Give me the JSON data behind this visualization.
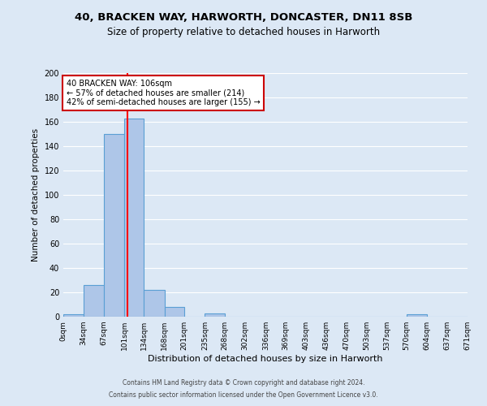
{
  "title_line1": "40, BRACKEN WAY, HARWORTH, DONCASTER, DN11 8SB",
  "title_line2": "Size of property relative to detached houses in Harworth",
  "bin_edges": [
    0,
    34,
    67,
    101,
    134,
    168,
    201,
    235,
    268,
    302,
    336,
    369,
    403,
    436,
    470,
    503,
    537,
    570,
    604,
    637,
    671
  ],
  "bar_heights": [
    2,
    26,
    150,
    163,
    22,
    8,
    0,
    3,
    0,
    0,
    0,
    0,
    0,
    0,
    0,
    0,
    0,
    2,
    0,
    0
  ],
  "bar_color": "#aec6e8",
  "bar_edge_color": "#5a9fd4",
  "red_line_x": 106,
  "ylabel": "Number of detached properties",
  "xlabel": "Distribution of detached houses by size in Harworth",
  "ylim": [
    0,
    200
  ],
  "yticks": [
    0,
    20,
    40,
    60,
    80,
    100,
    120,
    140,
    160,
    180,
    200
  ],
  "xticklabels": [
    "0sqm",
    "34sqm",
    "67sqm",
    "101sqm",
    "134sqm",
    "168sqm",
    "201sqm",
    "235sqm",
    "268sqm",
    "302sqm",
    "336sqm",
    "369sqm",
    "403sqm",
    "436sqm",
    "470sqm",
    "503sqm",
    "537sqm",
    "570sqm",
    "604sqm",
    "637sqm",
    "671sqm"
  ],
  "annotation_box_title": "40 BRACKEN WAY: 106sqm",
  "annotation_line1": "← 57% of detached houses are smaller (214)",
  "annotation_line2": "42% of semi-detached houses are larger (155) →",
  "annotation_box_color": "#ffffff",
  "annotation_box_edge_color": "#cc0000",
  "footer_line1": "Contains HM Land Registry data © Crown copyright and database right 2024.",
  "footer_line2": "Contains public sector information licensed under the Open Government Licence v3.0.",
  "background_color": "#dce8f5",
  "plot_background": "#dce8f5",
  "grid_color": "#ffffff"
}
